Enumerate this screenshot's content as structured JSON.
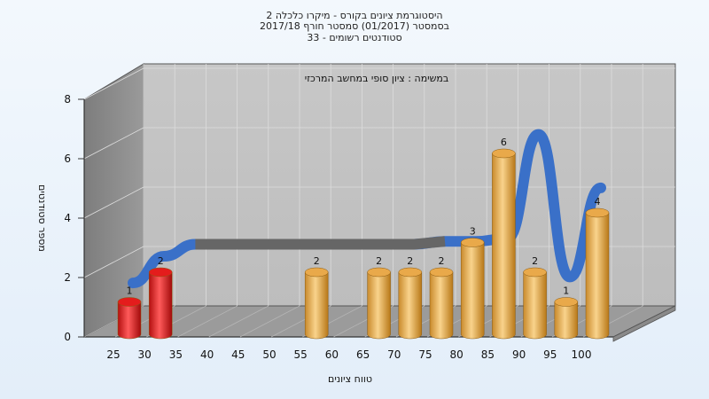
{
  "chart_data": {
    "type": "bar",
    "title_lines": [
      "היסטוגרמת ציונים בקורס - מיקרו כלכלה 2",
      "בסמסטר  (01/2017)  סמסטר חורף 2017/18",
      "סטודנטים רשומים - 33"
    ],
    "subtitle": "במשימה : ציון סופי במחשב המרכזי",
    "xlabel": "טווח ציונים",
    "ylabel": "מספר סטודנטים",
    "categories": [
      "25",
      "30",
      "35",
      "40",
      "45",
      "50",
      "55",
      "60",
      "65",
      "70",
      "75",
      "80",
      "85",
      "90",
      "95",
      "100"
    ],
    "values": [
      1,
      2,
      0,
      0,
      0,
      0,
      2,
      0,
      2,
      2,
      2,
      3,
      6,
      2,
      1,
      4
    ],
    "bar_colors": [
      "#e41c1c",
      "#e41c1c",
      "#e9a94a",
      "#e9a94a",
      "#e9a94a",
      "#e9a94a",
      "#e9a94a",
      "#e9a94a",
      "#e9a94a",
      "#e9a94a",
      "#e9a94a",
      "#e9a94a",
      "#e9a94a",
      "#e9a94a",
      "#e9a94a",
      "#e9a94a"
    ],
    "y_ticks": [
      0,
      2,
      4,
      6,
      8
    ],
    "ylim": [
      0,
      8
    ],
    "grid": true,
    "trend_line": {
      "color": "#3a70c8",
      "plateau_color": "#666666",
      "values": [
        1.4,
        2.3,
        2.7,
        2.7,
        2.7,
        2.7,
        2.7,
        2.7,
        2.7,
        2.7,
        2.8,
        2.8,
        2.9,
        6.4,
        1.6,
        4.6
      ]
    }
  }
}
